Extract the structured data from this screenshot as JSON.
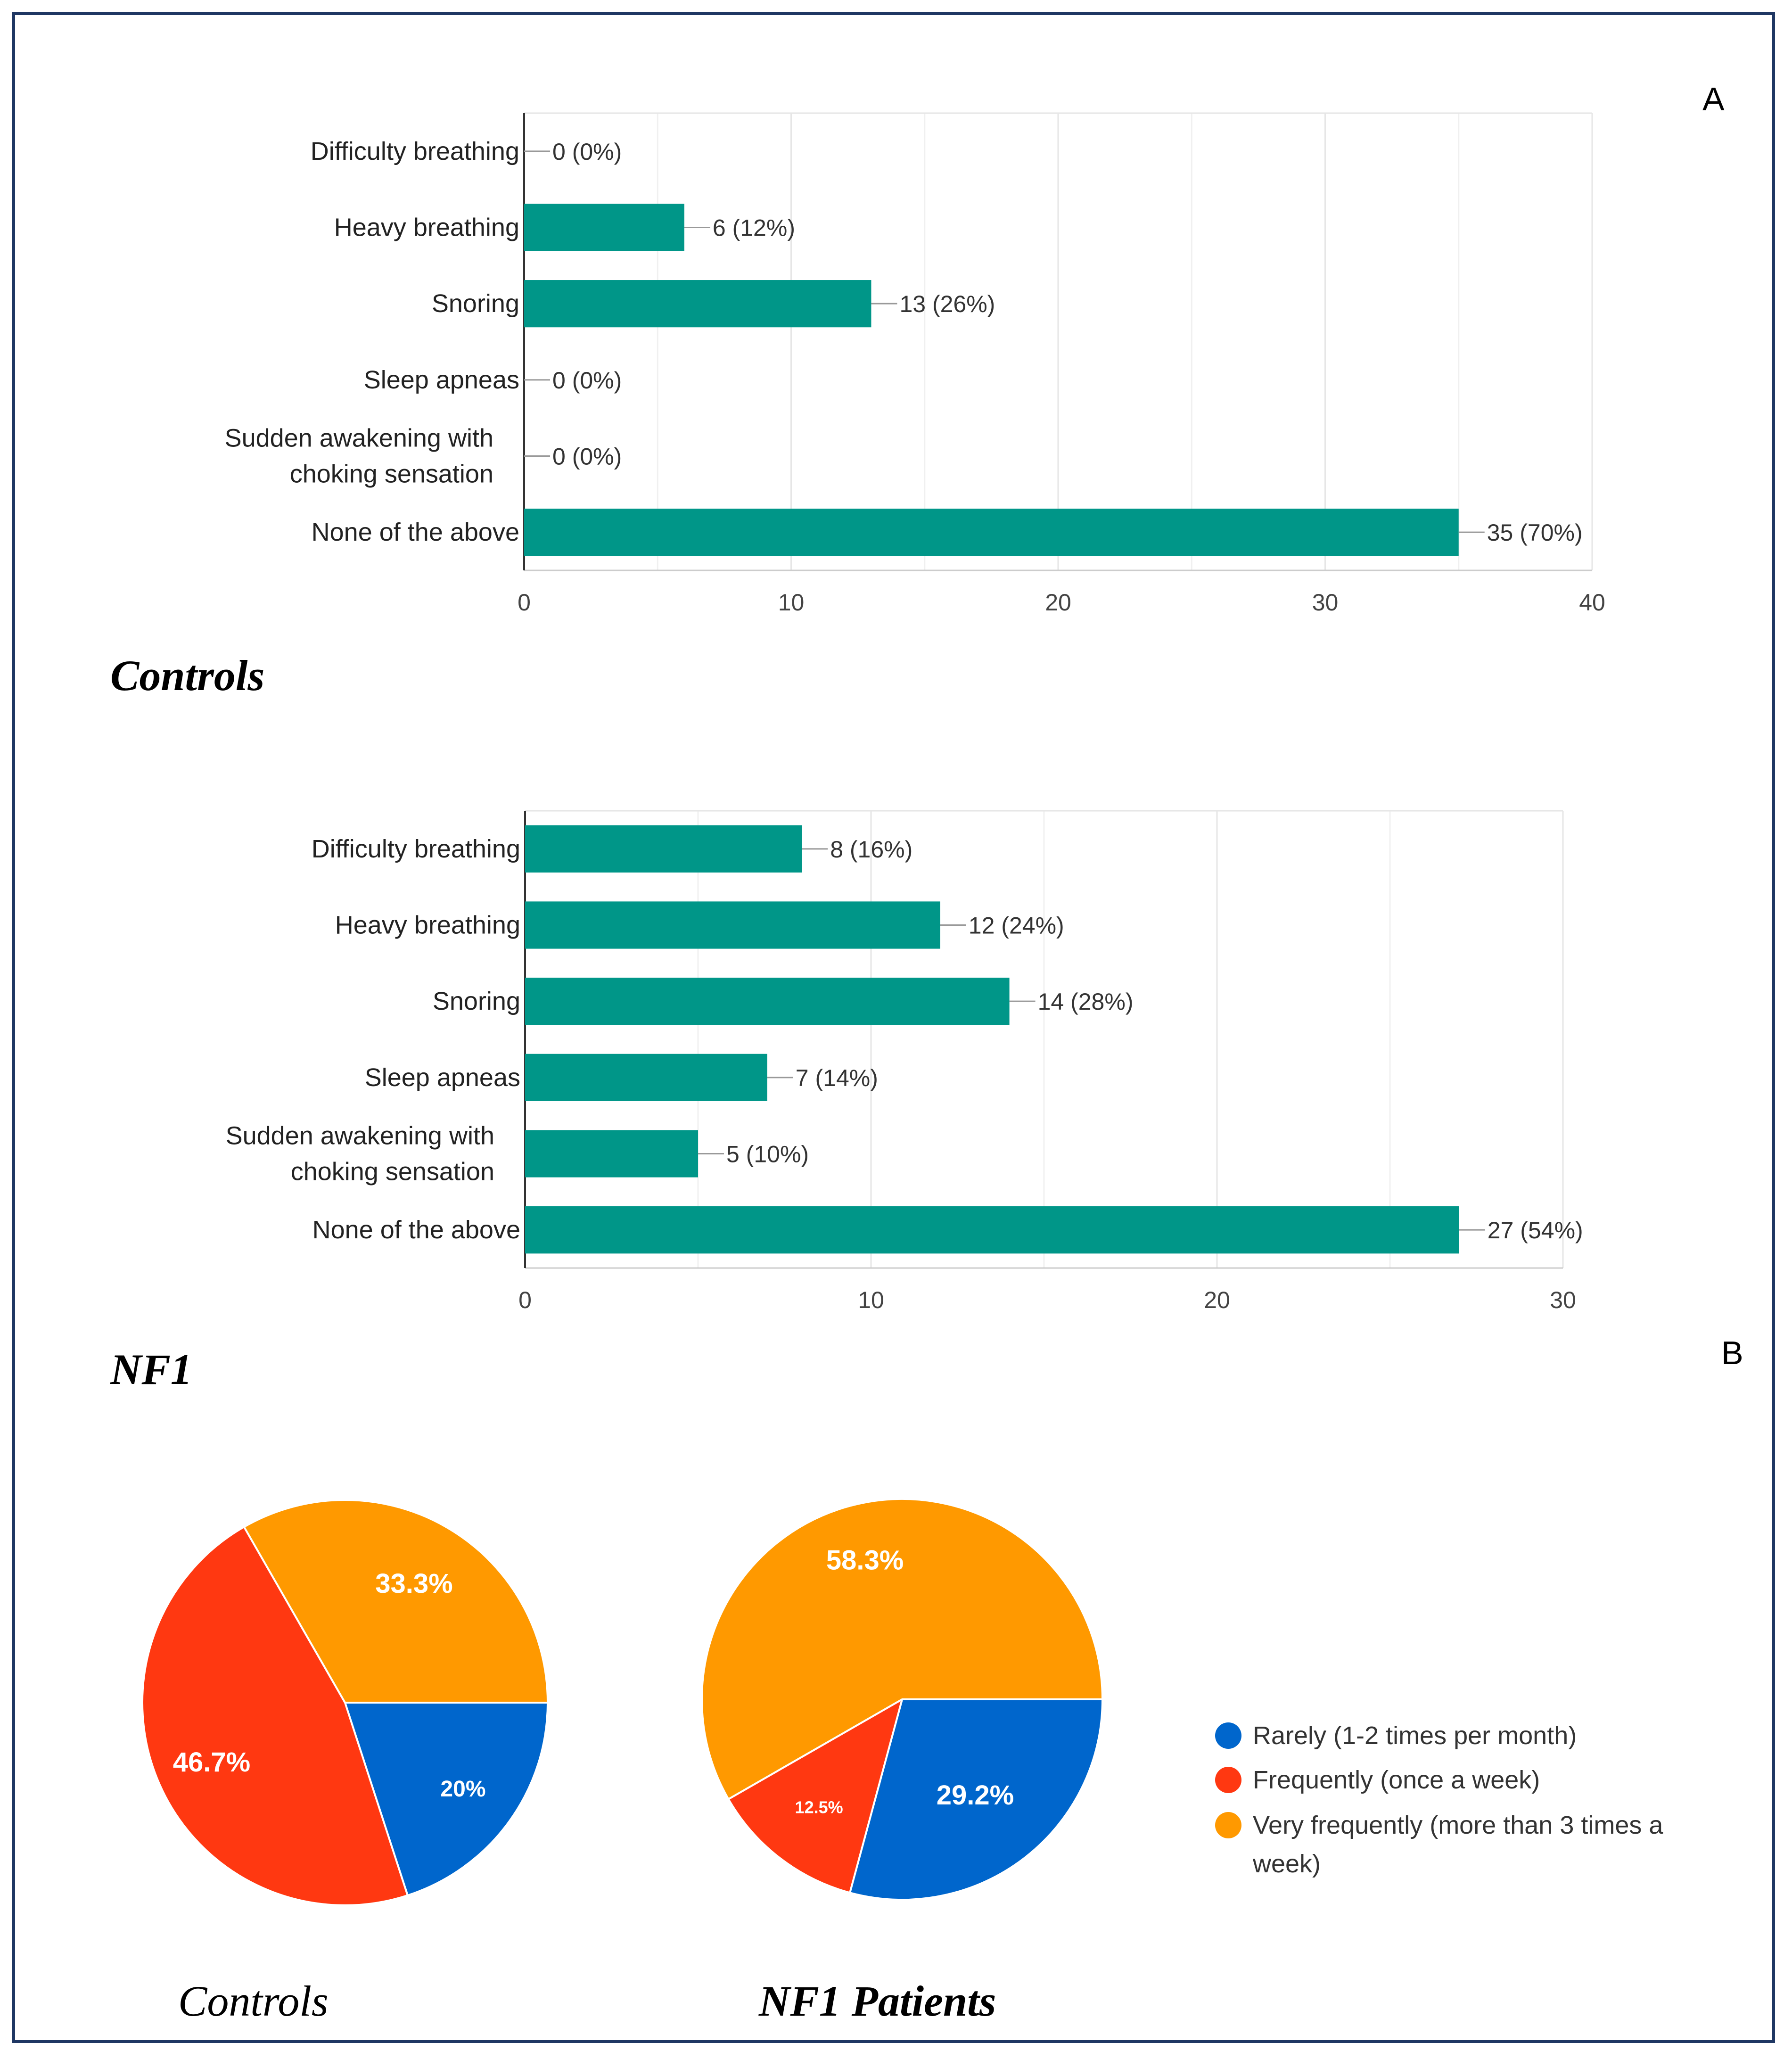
{
  "panel_labels": {
    "a": "A",
    "b": "B"
  },
  "group_titles": {
    "controls": "Controls",
    "nf1": "NF1"
  },
  "pie_captions": {
    "controls": "Controls",
    "nf1": "NF1 Patients"
  },
  "colors": {
    "bar": "#009688",
    "rarely": "#0066cc",
    "frequently": "#ff3811",
    "very_frequently": "#ff9900",
    "grid": "#e6e6e6",
    "axis": "#333333"
  },
  "chart_data": [
    {
      "type": "bar",
      "orientation": "horizontal",
      "group": "Controls",
      "categories": [
        "Difficulty breathing",
        "Heavy breathing",
        "Snoring",
        "Sleep apneas",
        "Sudden awakening with choking sensation",
        "None of the above"
      ],
      "category_lines": [
        [
          "Difficulty breathing"
        ],
        [
          "Heavy breathing"
        ],
        [
          "Snoring"
        ],
        [
          "Sleep apneas"
        ],
        [
          "Sudden awakening with",
          "choking sensation"
        ],
        [
          "None of the above"
        ]
      ],
      "values": [
        0,
        6,
        13,
        0,
        0,
        35
      ],
      "data_labels": [
        "0 (0%)",
        "6 (12%)",
        "13 (26%)",
        "0 (0%)",
        "0 (0%)",
        "35 (70%)"
      ],
      "xlim": [
        0,
        40
      ],
      "xticks": [
        0,
        10,
        20,
        30,
        40
      ],
      "minor_gridlines": [
        5,
        15,
        25,
        35
      ]
    },
    {
      "type": "bar",
      "orientation": "horizontal",
      "group": "NF1",
      "categories": [
        "Difficulty breathing",
        "Heavy breathing",
        "Snoring",
        "Sleep apneas",
        "Sudden awakening with choking sensation",
        "None of the above"
      ],
      "category_lines": [
        [
          "Difficulty breathing"
        ],
        [
          "Heavy breathing"
        ],
        [
          "Snoring"
        ],
        [
          "Sleep apneas"
        ],
        [
          "Sudden awakening with",
          "choking sensation"
        ],
        [
          "None of the above"
        ]
      ],
      "values": [
        8,
        12,
        14,
        7,
        5,
        27
      ],
      "data_labels": [
        "8 (16%)",
        "12 (24%)",
        "14 (28%)",
        "7 (14%)",
        "5 (10%)",
        "27 (54%)"
      ],
      "xlim": [
        0,
        30
      ],
      "xticks": [
        0,
        10,
        20,
        30
      ],
      "minor_gridlines": [
        5,
        15,
        25
      ]
    },
    {
      "type": "pie",
      "group": "Controls",
      "slices": [
        {
          "key": "rarely",
          "label": "Rarely (1-2 times per month)",
          "value": 20,
          "display": "20%"
        },
        {
          "key": "frequently",
          "label": "Frequently (once a week)",
          "value": 46.7,
          "display": "46.7%"
        },
        {
          "key": "very_frequently",
          "label": "Very frequently (more than 3 times a week)",
          "value": 33.3,
          "display": "33.3%"
        }
      ]
    },
    {
      "type": "pie",
      "group": "NF1 Patients",
      "slices": [
        {
          "key": "rarely",
          "label": "Rarely (1-2 times per month)",
          "value": 29.2,
          "display": "29.2%"
        },
        {
          "key": "frequently",
          "label": "Frequently (once a week)",
          "value": 12.5,
          "display": "12.5%"
        },
        {
          "key": "very_frequently",
          "label": "Very frequently (more than 3 times a week)",
          "value": 58.3,
          "display": "58.3%"
        }
      ]
    }
  ],
  "legend": {
    "placement": "right",
    "items": [
      {
        "key": "rarely",
        "lines": [
          "Rarely (1-2 times per month)"
        ]
      },
      {
        "key": "frequently",
        "lines": [
          "Frequently (once a week)"
        ]
      },
      {
        "key": "very_frequently",
        "lines": [
          "Very frequently (more than 3 times a",
          "week)"
        ]
      }
    ]
  }
}
